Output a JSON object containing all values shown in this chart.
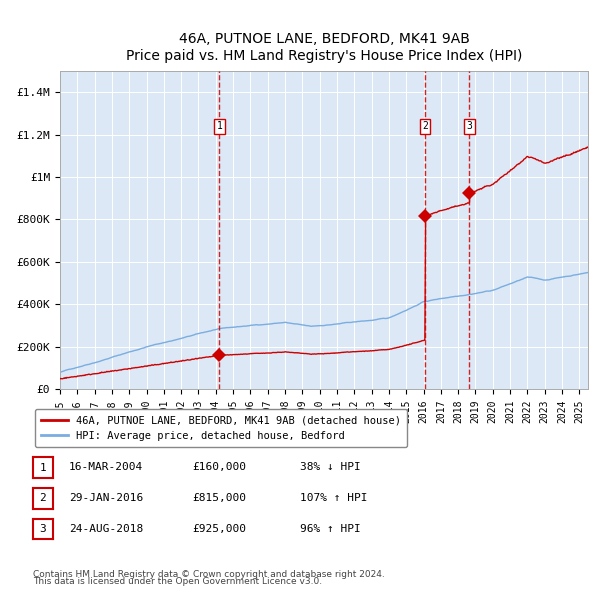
{
  "title": "46A, PUTNOE LANE, BEDFORD, MK41 9AB",
  "subtitle": "Price paid vs. HM Land Registry's House Price Index (HPI)",
  "ylabel_ticks": [
    "£0",
    "£200K",
    "£400K",
    "£600K",
    "£800K",
    "£1M",
    "£1.2M",
    "£1.4M"
  ],
  "ytick_values": [
    0,
    200000,
    400000,
    600000,
    800000,
    1000000,
    1200000,
    1400000
  ],
  "ylim": [
    0,
    1500000
  ],
  "xlim_start": 1995.0,
  "xlim_end": 2025.5,
  "bg_color": "#dce8f5",
  "plot_area_color": "#dce8f5",
  "hpi_color": "#7aade0",
  "price_color": "#cc0000",
  "dashed_line_color": "#cc0000",
  "marker_color": "#cc0000",
  "transactions": [
    {
      "label": "1",
      "date_str": "16-MAR-2004",
      "year": 2004.21,
      "price": 160000,
      "pct": "38%",
      "dir": "↓"
    },
    {
      "label": "2",
      "date_str": "29-JAN-2016",
      "year": 2016.08,
      "price": 815000,
      "pct": "107%",
      "dir": "↑"
    },
    {
      "label": "3",
      "date_str": "24-AUG-2018",
      "year": 2018.65,
      "price": 925000,
      "pct": "96%",
      "dir": "↑"
    }
  ],
  "legend_label_price": "46A, PUTNOE LANE, BEDFORD, MK41 9AB (detached house)",
  "legend_label_hpi": "HPI: Average price, detached house, Bedford",
  "footnote1": "Contains HM Land Registry data © Crown copyright and database right 2024.",
  "footnote2": "This data is licensed under the Open Government Licence v3.0.",
  "table_rows": [
    [
      "1",
      "16-MAR-2004",
      "£160,000",
      "38% ↓ HPI"
    ],
    [
      "2",
      "29-JAN-2016",
      "£815,000",
      "107% ↑ HPI"
    ],
    [
      "3",
      "24-AUG-2018",
      "£925,000",
      "96% ↑ HPI"
    ]
  ]
}
